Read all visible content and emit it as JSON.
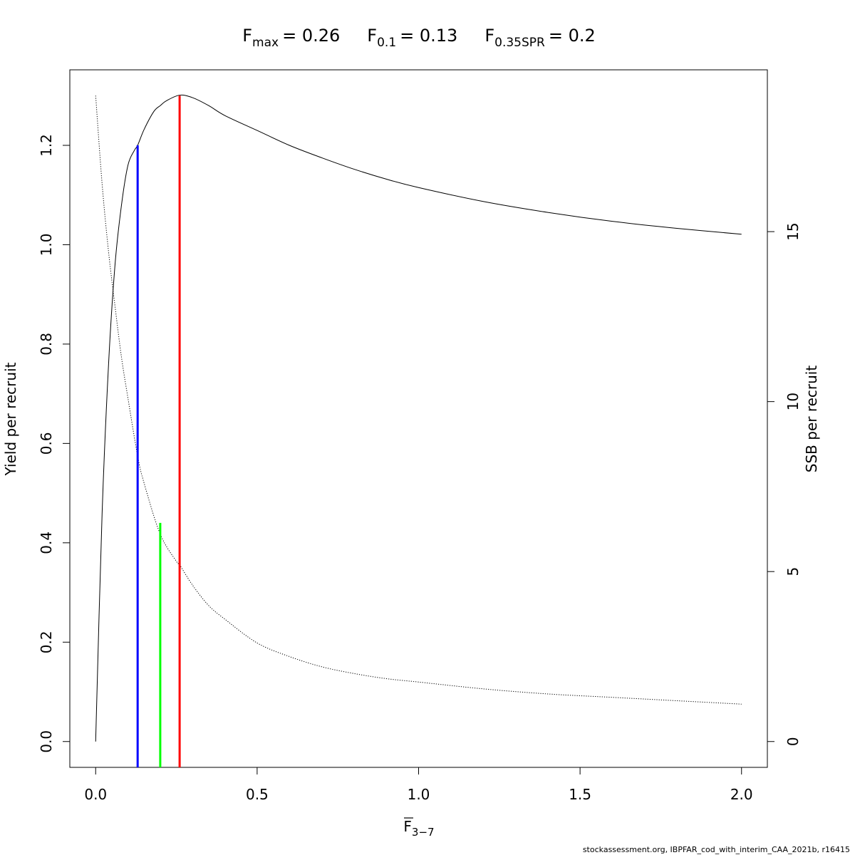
{
  "title": {
    "fmax": {
      "base": "F",
      "sub": "max",
      "value": "= 0.26"
    },
    "f01": {
      "base": "F",
      "sub": "0.1",
      "value": "= 0.13"
    },
    "f035": {
      "base": "F",
      "sub": "0.35SPR",
      "value": "= 0.2"
    }
  },
  "footer": "stockassessment.org, IBPFAR_cod_with_interim_CAA_2021b, r16415",
  "chart_data": {
    "type": "line",
    "xlabel": {
      "base": "F",
      "sub": "3−7"
    },
    "ylabel_left": "Yield per recruit",
    "ylabel_right": "SSB per recruit",
    "xlim": [
      -0.08,
      2.08
    ],
    "ylim_left": [
      -0.052,
      1.352
    ],
    "ylim_right": [
      -0.76,
      19.76
    ],
    "x_ticks": [
      0,
      0.5,
      1,
      1.5,
      2
    ],
    "x_tick_labels": [
      "0.0",
      "0.5",
      "1.0",
      "1.5",
      "2.0"
    ],
    "y_left_ticks": [
      0,
      0.2,
      0.4,
      0.6,
      0.8,
      1.0,
      1.2
    ],
    "y_left_tick_labels": [
      "0.0",
      "0.2",
      "0.4",
      "0.6",
      "0.8",
      "1.0",
      "1.2"
    ],
    "y_right_ticks": [
      0,
      5,
      10,
      15
    ],
    "y_right_tick_labels": [
      "0",
      "5",
      "10",
      "15"
    ],
    "grid": false,
    "series": [
      {
        "axis": "left",
        "style": "solid",
        "color": "#000000",
        "x": [
          0,
          0.02,
          0.04,
          0.06,
          0.08,
          0.1,
          0.12,
          0.13,
          0.15,
          0.18,
          0.2,
          0.22,
          0.26,
          0.3,
          0.35,
          0.4,
          0.5,
          0.6,
          0.7,
          0.8,
          0.9,
          1.0,
          1.2,
          1.4,
          1.6,
          1.8,
          2.0
        ],
        "y": [
          0,
          0.46,
          0.76,
          0.96,
          1.08,
          1.16,
          1.19,
          1.2,
          1.232,
          1.268,
          1.28,
          1.29,
          1.301,
          1.296,
          1.28,
          1.26,
          1.23,
          1.2,
          1.175,
          1.152,
          1.132,
          1.115,
          1.087,
          1.065,
          1.047,
          1.033,
          1.021
        ]
      },
      {
        "axis": "right",
        "style": "dotted",
        "color": "#000000",
        "x": [
          0,
          0.02,
          0.04,
          0.06,
          0.08,
          0.1,
          0.13,
          0.15,
          0.2,
          0.25,
          0.26,
          0.3,
          0.35,
          0.4,
          0.5,
          0.6,
          0.7,
          0.8,
          0.9,
          1.0,
          1.2,
          1.4,
          1.6,
          1.8,
          2.0
        ],
        "y": [
          19.0,
          16.4,
          14.4,
          12.8,
          11.3,
          10.1,
          8.4,
          7.6,
          6.1,
          5.3,
          5.2,
          4.6,
          4.0,
          3.6,
          2.9,
          2.5,
          2.2,
          2.0,
          1.85,
          1.75,
          1.55,
          1.4,
          1.3,
          1.2,
          1.1
        ]
      }
    ],
    "reference_lines": [
      {
        "name": "fmax",
        "x": 0.26,
        "y_top_left": 1.3,
        "color": "#ff0000"
      },
      {
        "name": "f01",
        "x": 0.13,
        "y_top_left": 1.2,
        "color": "#0000ff"
      },
      {
        "name": "f035spr",
        "x": 0.2,
        "y_top_left": 0.44,
        "color": "#00ff00"
      }
    ]
  }
}
